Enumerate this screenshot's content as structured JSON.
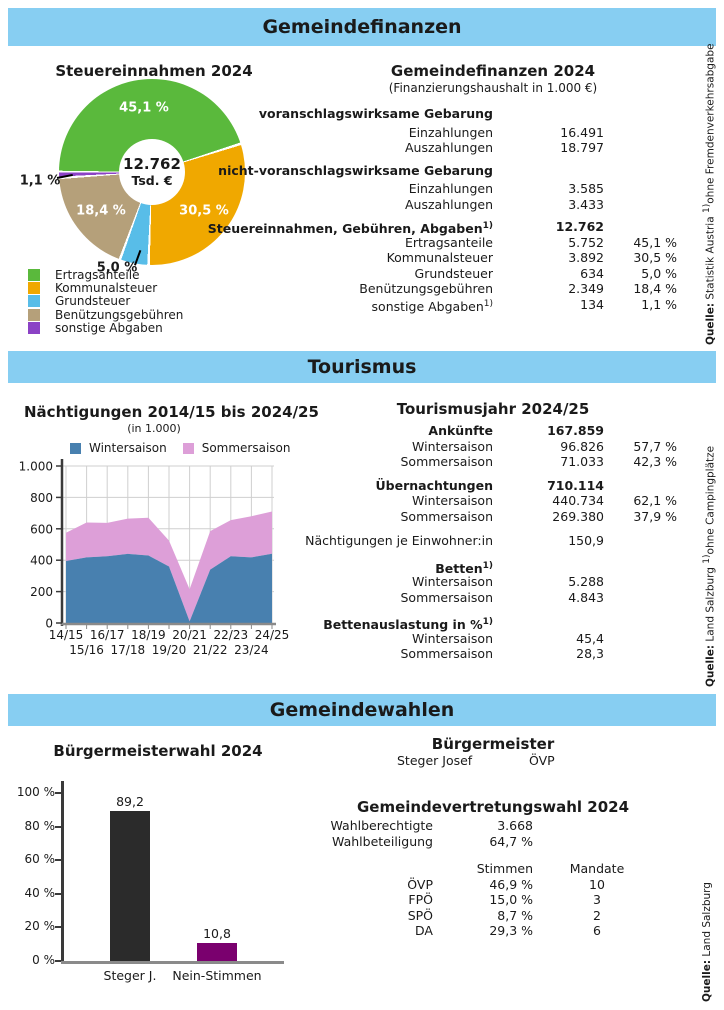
{
  "bands": {
    "finance": "Gemeindefinanzen",
    "tourism": "Tourismus",
    "elections": "Gemeindewahlen"
  },
  "chart_data": [
    {
      "id": "steuereinnahmen-donut",
      "type": "pie",
      "title": "Steuereinnahmen 2024",
      "center_label": "12.762",
      "center_sublabel": "Tsd. €",
      "labels": [
        "Ertragsanteile",
        "Kommunalsteuer",
        "Grundsteuer",
        "Benützungsgebühren",
        "sonstige Abgaben"
      ],
      "values": [
        5752,
        3892,
        634,
        2349,
        134
      ],
      "percents": [
        45.1,
        30.5,
        5.0,
        18.4,
        1.1
      ],
      "percent_labels": [
        "45,1 %",
        "30,5 %",
        "5,0 %",
        "18,4 %",
        "1,1 %"
      ],
      "colors": [
        "#5ab93c",
        "#f0a800",
        "#58bde8",
        "#b5a07a",
        "#8b42c5"
      ],
      "start_angle_deg": 270,
      "unit": "Tsd. €"
    },
    {
      "id": "naechtigungen-area",
      "type": "area",
      "title": "Nächtigungen 2014/15 bis 2024/25",
      "subtitle": "(in 1.000)",
      "stacked": true,
      "grid": true,
      "legend_position": "top",
      "categories": [
        "14/15",
        "15/16",
        "16/17",
        "17/18",
        "18/19",
        "19/20",
        "20/21",
        "21/22",
        "22/23",
        "23/24",
        "24/25"
      ],
      "series": [
        {
          "name": "Wintersaison",
          "color": "#4880af",
          "values": [
            395,
            418,
            425,
            440,
            430,
            360,
            10,
            340,
            425,
            418,
            441
          ]
        },
        {
          "name": "Sommersaison",
          "color": "#dd9fd8",
          "values": [
            180,
            222,
            213,
            225,
            240,
            165,
            205,
            245,
            230,
            262,
            269
          ]
        }
      ],
      "ylim": [
        0,
        1000
      ],
      "yticks": [
        "0",
        "200",
        "400",
        "600",
        "800",
        "1.000"
      ]
    },
    {
      "id": "buergermeisterwahl-bar",
      "type": "bar",
      "title": "Bürgermeisterwahl 2024",
      "categories": [
        "Steger J.",
        "Nein-Stimmen"
      ],
      "values": [
        89.2,
        10.8
      ],
      "value_labels": [
        "89,2",
        "10,8"
      ],
      "colors": [
        "#2b2b2b",
        "#7a006e"
      ],
      "ylim": [
        0,
        100
      ],
      "yticks": [
        "0 %",
        "20 %",
        "40 %",
        "60 %",
        "80 %",
        "100 %"
      ]
    }
  ],
  "finance_table": {
    "title": "Gemeindefinanzen 2024",
    "subtitle": "(Finanzierungshaushalt in 1.000 €)",
    "rows": [
      {
        "label": "voranschlagswirksame Gebarung"
      },
      {
        "label": "Einzahlungen",
        "value": "16.491"
      },
      {
        "label": "Auszahlungen",
        "value": "18.797"
      },
      {
        "label": "nicht-voranschlagswirksame Gebarung"
      },
      {
        "label": "Einzahlungen",
        "value": "3.585"
      },
      {
        "label": "Auszahlungen",
        "value": "3.433"
      },
      {
        "label": "Steuereinnahmen, Gebühren, Abgaben",
        "label_sup": "1)",
        "value": "12.762"
      },
      {
        "label": "Ertragsanteile",
        "value": "5.752",
        "pct": "45,1 %"
      },
      {
        "label": "Kommunalsteuer",
        "value": "3.892",
        "pct": "30,5 %"
      },
      {
        "label": "Grundsteuer",
        "value": "634",
        "pct": "5,0 %"
      },
      {
        "label": "Benützungsgebühren",
        "value": "2.349",
        "pct": "18,4 %"
      },
      {
        "label": "sonstige Abgaben",
        "label_sup": "1)",
        "value": "134",
        "pct": "1,1 %"
      }
    ]
  },
  "tourism_table": {
    "title": "Tourismusjahr 2024/25",
    "rows": [
      {
        "label": "Ankünfte",
        "value": "167.859"
      },
      {
        "label": "Wintersaison",
        "value": "96.826",
        "pct": "57,7 %"
      },
      {
        "label": "Sommersaison",
        "value": "71.033",
        "pct": "42,3 %"
      },
      {
        "label": "Übernachtungen",
        "value": "710.114"
      },
      {
        "label": "Wintersaison",
        "value": "440.734",
        "pct": "62,1 %"
      },
      {
        "label": "Sommersaison",
        "value": "269.380",
        "pct": "37,9 %"
      },
      {
        "label": "Nächtigungen je Einwohner:in",
        "value": "150,9"
      },
      {
        "label": "Betten",
        "label_sup": "1)"
      },
      {
        "label": "Wintersaison",
        "value": "5.288"
      },
      {
        "label": "Sommersaison",
        "value": "4.843"
      },
      {
        "label": "Bettenauslastung in %",
        "label_sup": "1)"
      },
      {
        "label": "Wintersaison",
        "value": "45,4"
      },
      {
        "label": "Sommersaison",
        "value": "28,3"
      }
    ]
  },
  "elections": {
    "mayor_heading": "Bürgermeister",
    "mayor_name": "Steger Josef",
    "mayor_party": "ÖVP",
    "council_heading": "Gemeindevertretungswahl 2024",
    "info": [
      {
        "label": "Wahlberechtigte",
        "value": "3.668"
      },
      {
        "label": "Wahlbeteiligung",
        "value": "64,7 %"
      }
    ],
    "cols": {
      "votes": "Stimmen",
      "seats": "Mandate"
    },
    "parties": [
      {
        "name": "ÖVP",
        "votes": "46,9 %",
        "seats": "10"
      },
      {
        "name": "FPÖ",
        "votes": "15,0 %",
        "seats": "3"
      },
      {
        "name": "SPÖ",
        "votes": "8,7 %",
        "seats": "2"
      },
      {
        "name": "DA",
        "votes": "29,3 %",
        "seats": "6"
      }
    ]
  },
  "sources": {
    "finance": {
      "label": "Quelle:",
      "name": " Statistik Austria  ",
      "sup": "1)",
      "note": "ohne Fremdenverkehrsabgabe"
    },
    "tourism": {
      "label": "Quelle:",
      "name": " Land Salzburg  ",
      "sup": "1)",
      "note": "ohne Campingplätze"
    },
    "elections": {
      "label": "Quelle:",
      "name": " Land Salzburg"
    }
  }
}
